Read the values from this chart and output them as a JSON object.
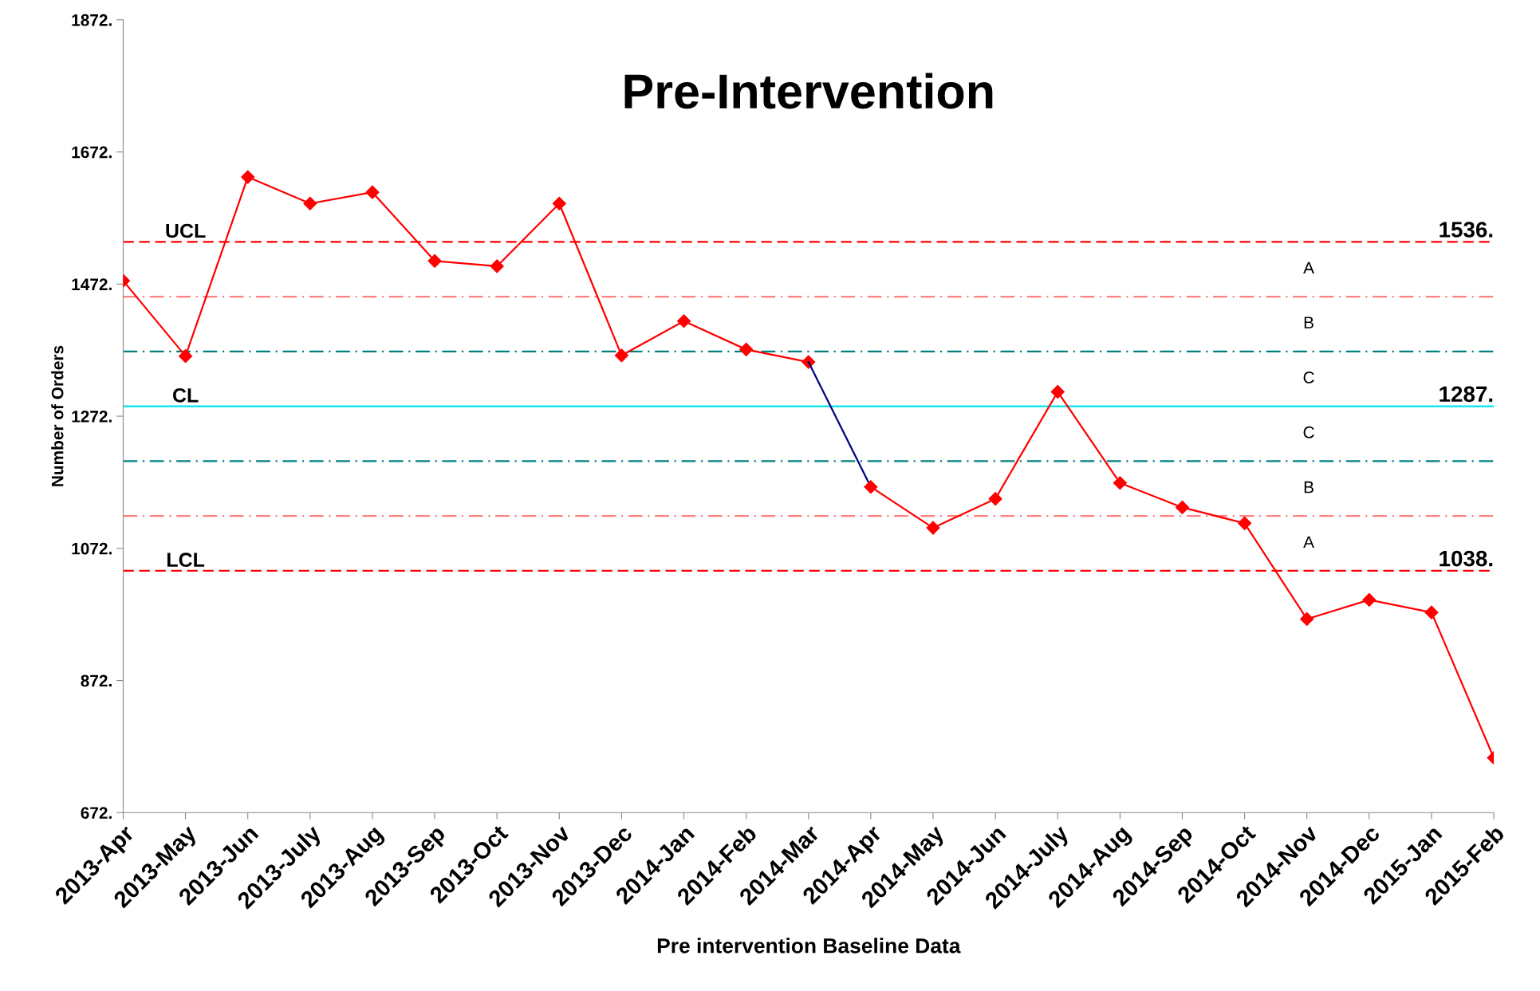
{
  "chart_data": {
    "type": "line",
    "title": "Pre-Intervention",
    "xlabel": "Pre intervention Baseline Data",
    "ylabel": "Number of Orders",
    "categories": [
      "2013-Apr",
      "2013-May",
      "2013-Jun",
      "2013-July",
      "2013-Aug",
      "2013-Sep",
      "2013-Oct",
      "2013-Nov",
      "2013-Dec",
      "2014-Jan",
      "2014-Feb",
      "2014-Mar",
      "2014-Apr",
      "2014-May",
      "2014-Jun",
      "2014-July",
      "2014-Aug",
      "2014-Sep",
      "2014-Oct",
      "2014-Nov",
      "2014-Dec",
      "2015-Jan",
      "2015-Feb"
    ],
    "series": [
      {
        "color": "#ff0000",
        "marker": "diamond",
        "values": [
          1477,
          1363,
          1634,
          1594,
          1611,
          1507,
          1499,
          1594,
          1364,
          1416,
          1373,
          1354,
          null,
          null,
          null,
          null,
          null,
          null,
          null,
          null,
          null,
          null,
          null
        ]
      },
      {
        "color": "#000080",
        "marker": "none",
        "values": [
          null,
          null,
          null,
          null,
          null,
          null,
          null,
          null,
          null,
          null,
          null,
          1354,
          1165,
          null,
          null,
          null,
          null,
          null,
          null,
          null,
          null,
          null,
          null
        ]
      },
      {
        "color": "#ff0000",
        "marker": "diamond",
        "values": [
          null,
          null,
          null,
          null,
          null,
          null,
          null,
          null,
          null,
          null,
          null,
          null,
          1165,
          1103,
          1147,
          1309,
          1171,
          1134,
          1110,
          965,
          994,
          975,
          755
        ]
      }
    ],
    "ylim": [
      672,
      1872
    ],
    "yticks": [
      {
        "value": 672,
        "label": "672."
      },
      {
        "value": 872,
        "label": "872."
      },
      {
        "value": 1072,
        "label": "1072."
      },
      {
        "value": 1272,
        "label": "1272."
      },
      {
        "value": 1472,
        "label": "1472."
      },
      {
        "value": 1672,
        "label": "1672."
      },
      {
        "value": 1872,
        "label": "1872."
      }
    ],
    "ref_lines": [
      {
        "axis": "y",
        "value": 1536,
        "label": "UCL",
        "color": "#ff0000",
        "line_style": "dashed"
      },
      {
        "axis": "y",
        "value": 1453,
        "color": "#ff8080",
        "line_style": "dashdot"
      },
      {
        "axis": "y",
        "value": 1370,
        "color": "#008080",
        "line_style": "dashdot"
      },
      {
        "axis": "y",
        "value": 1287,
        "label": "CL",
        "color": "#00e5ee",
        "line_style": "solid"
      },
      {
        "axis": "y",
        "value": 1204,
        "color": "#008080",
        "line_style": "dashdot"
      },
      {
        "axis": "y",
        "value": 1121,
        "color": "#ff8080",
        "line_style": "dashdot"
      },
      {
        "axis": "y",
        "value": 1038,
        "label": "LCL",
        "color": "#ff0000",
        "line_style": "dashed"
      }
    ],
    "annotations": [
      {
        "text": "1536.",
        "x": "2015-Feb",
        "y": 1536
      },
      {
        "text": "1287.",
        "x": "2015-Feb",
        "y": 1287
      },
      {
        "text": "1038.",
        "x": "2015-Feb",
        "y": 1038
      },
      "A",
      "B",
      "C",
      "C",
      "B",
      "A"
    ],
    "grid": false,
    "legend": false
  }
}
